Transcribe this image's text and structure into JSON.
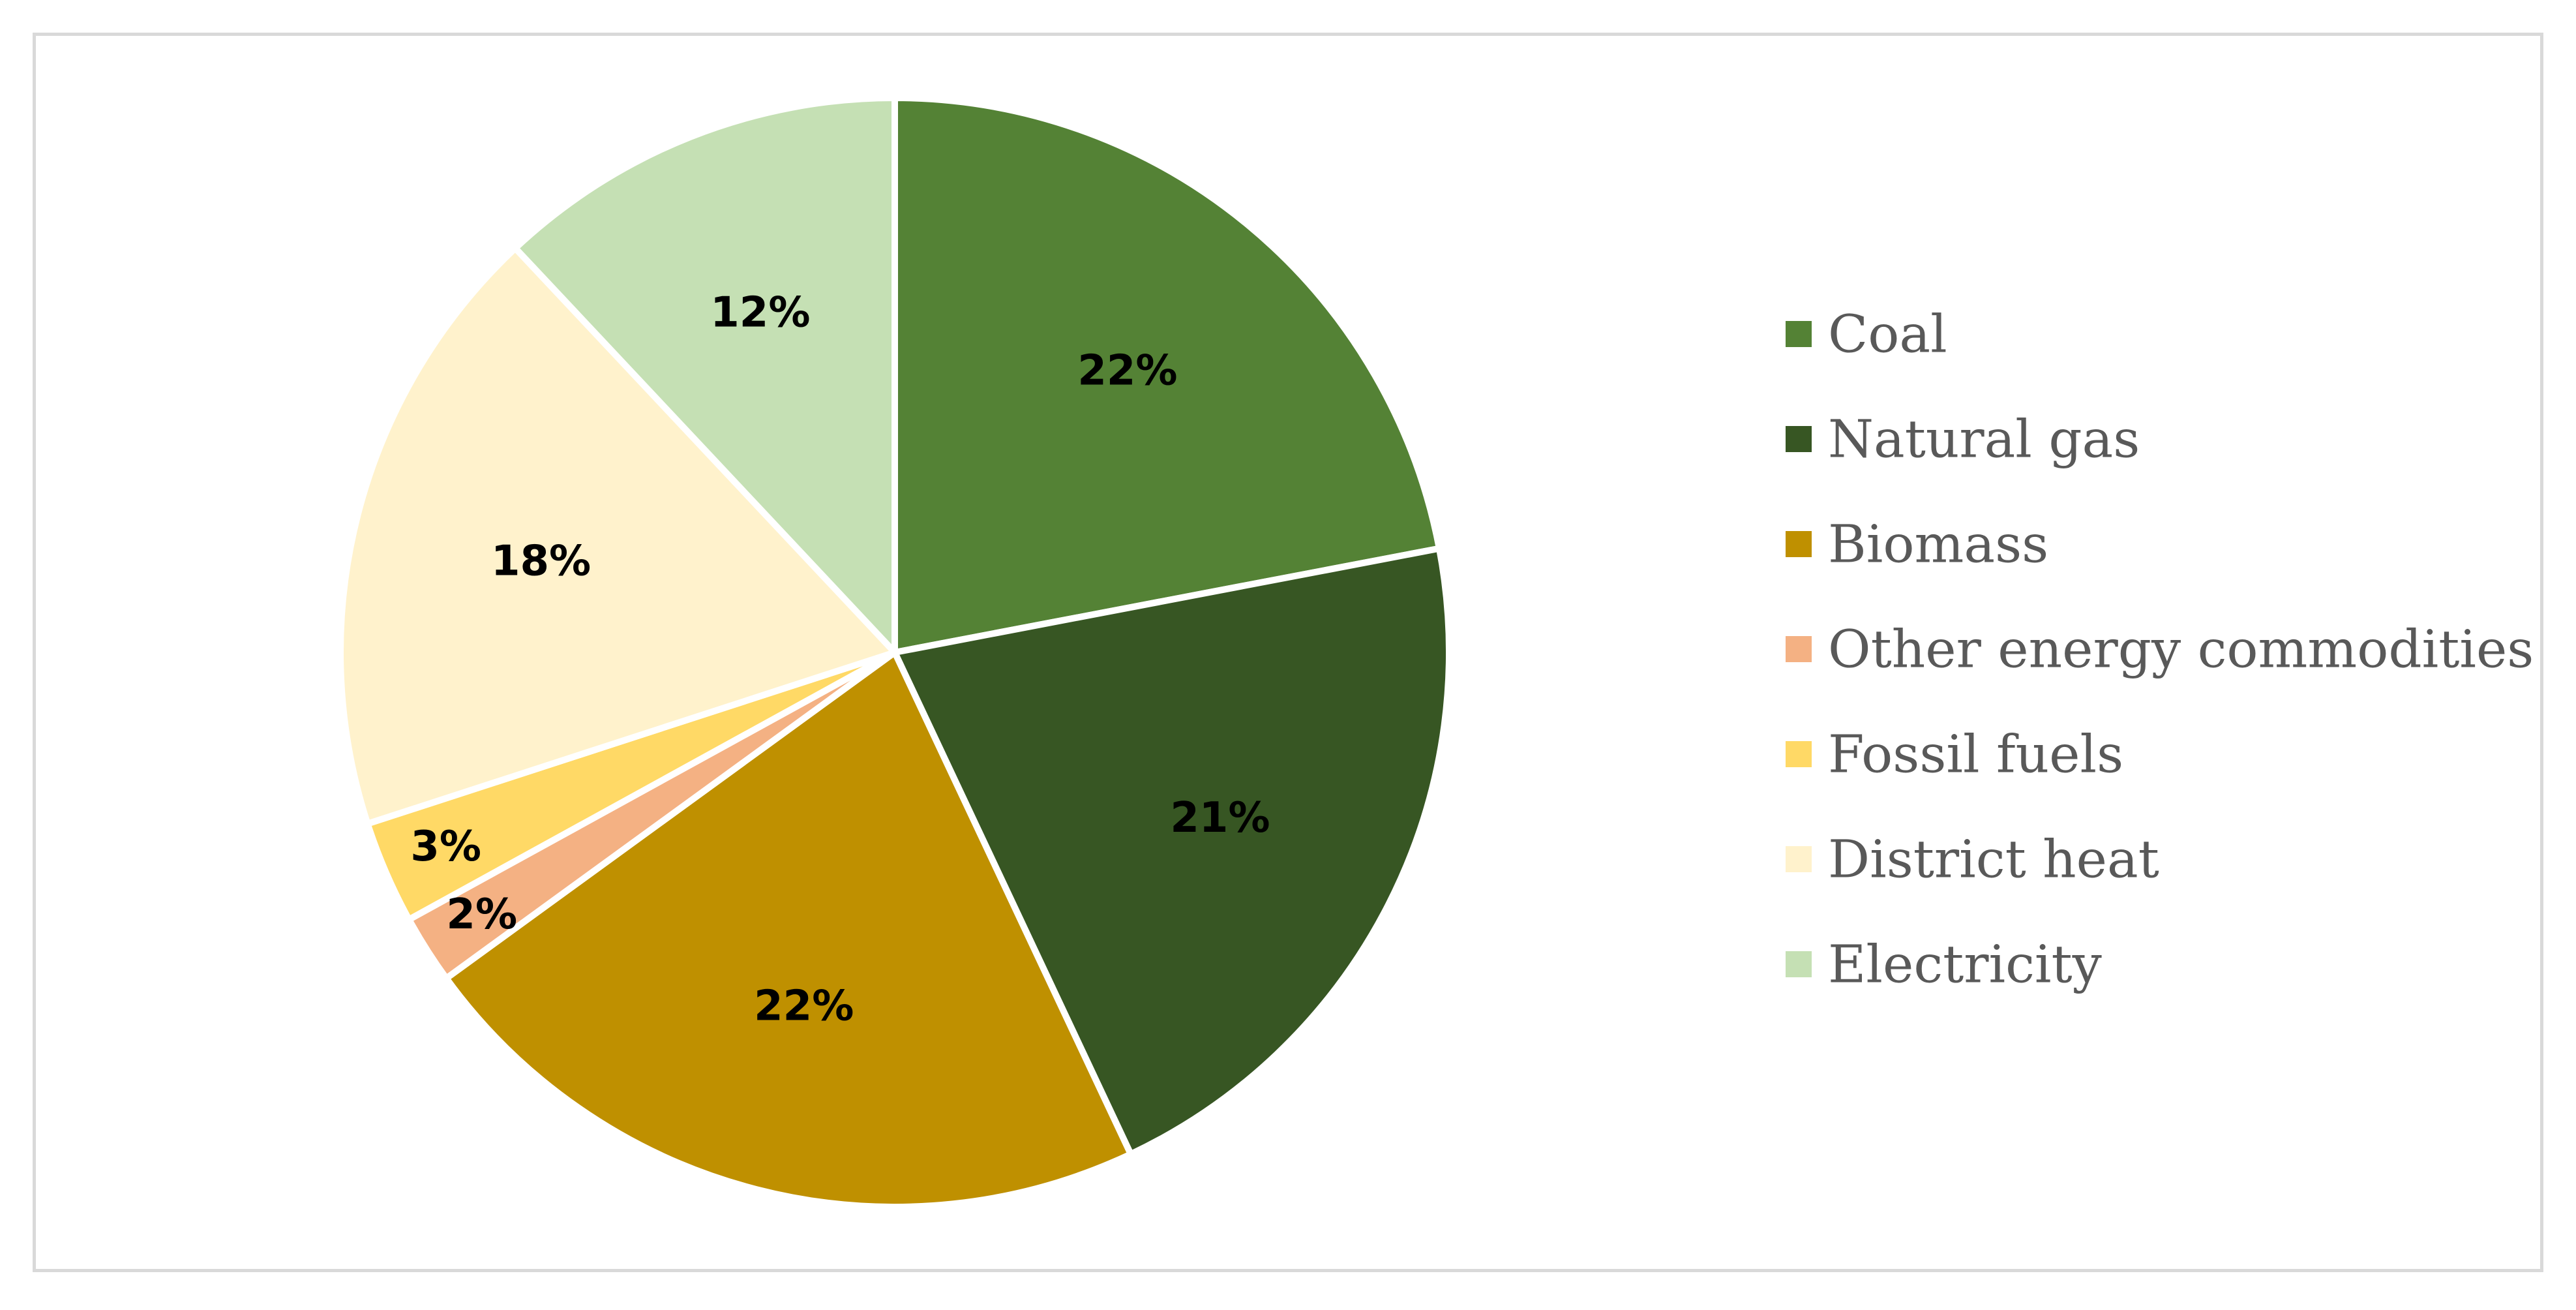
{
  "chart_data": {
    "type": "pie",
    "title": "",
    "legend_position": "right",
    "slices": [
      {
        "label": "Coal",
        "value": 22,
        "display": "22%",
        "color": "#548235"
      },
      {
        "label": "Natural gas",
        "value": 21,
        "display": "21%",
        "color": "#375623"
      },
      {
        "label": "Biomass",
        "value": 22,
        "display": "22%",
        "color": "#bf9000"
      },
      {
        "label": "Other energy commodities",
        "value": 2,
        "display": "2%",
        "color": "#f4b183"
      },
      {
        "label": "Fossil fuels",
        "value": 3,
        "display": "3%",
        "color": "#ffd966"
      },
      {
        "label": "District heat",
        "value": 18,
        "display": "18%",
        "color": "#fff2cc"
      },
      {
        "label": "Electricity",
        "value": 12,
        "display": "12%",
        "color": "#c5e0b4"
      }
    ]
  }
}
